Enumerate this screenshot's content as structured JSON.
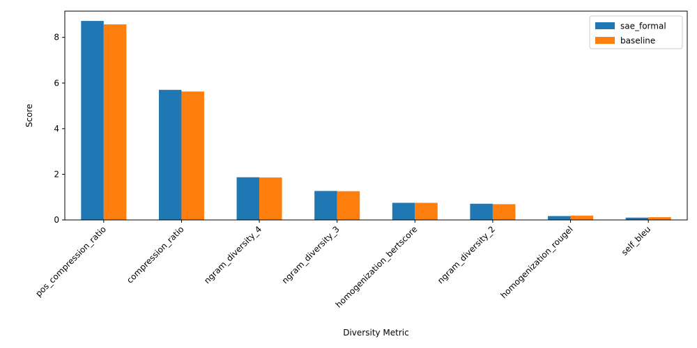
{
  "chart_data": {
    "type": "bar",
    "title": "",
    "xlabel": "Diversity Metric",
    "ylabel": "Score",
    "ylim": [
      0,
      9.15
    ],
    "yticks": [
      0,
      2,
      4,
      6,
      8
    ],
    "grid": false,
    "legend_position": "top-right",
    "categories": [
      "pos_compression_ratio",
      "compression_ratio",
      "ngram_diversity_4",
      "ngram_diversity_3",
      "homogenization_bertscore",
      "ngram_diversity_2",
      "homogenization_rougel",
      "self_bleu"
    ],
    "series": [
      {
        "name": "sae_formal",
        "color": "#1f77b4",
        "values": [
          8.72,
          5.7,
          1.87,
          1.27,
          0.75,
          0.71,
          0.17,
          0.1
        ]
      },
      {
        "name": "baseline",
        "color": "#ff7f0e",
        "values": [
          8.57,
          5.63,
          1.86,
          1.26,
          0.75,
          0.69,
          0.19,
          0.12
        ]
      }
    ]
  }
}
